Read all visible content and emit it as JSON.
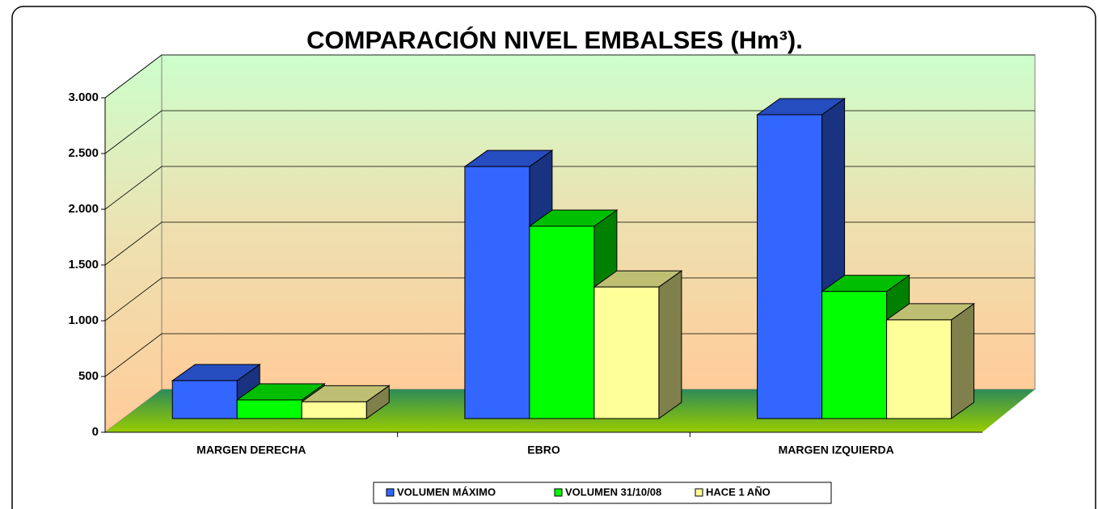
{
  "chart_data": {
    "type": "bar3d",
    "title": "COMPARACIÓN NIVEL EMBALSES (Hm³).",
    "categories": [
      "MARGEN DERECHA",
      "EBRO",
      "MARGEN IZQUIERDA"
    ],
    "series": [
      {
        "name": "VOLUMEN MÁXIMO",
        "color": "#3366ff",
        "values": [
          340,
          2260,
          2725
        ]
      },
      {
        "name": "VOLUMEN 31/10/08",
        "color": "#00ff00",
        "values": [
          167,
          1725,
          1140
        ]
      },
      {
        "name": "HACE 1 AÑO",
        "color": "#ffff99",
        "values": [
          150,
          1180,
          885
        ]
      }
    ],
    "ylim": [
      0,
      3000
    ],
    "yticks": [
      0,
      500,
      {
        "value": 1000,
        "label": "1.000"
      },
      {
        "value": 1500,
        "label": "1.500"
      },
      {
        "value": 2000,
        "label": "2.000"
      },
      {
        "value": 2500,
        "label": "2.500"
      },
      {
        "value": 3000,
        "label": "3.000"
      }
    ],
    "grid": true,
    "legend": "bottom"
  }
}
